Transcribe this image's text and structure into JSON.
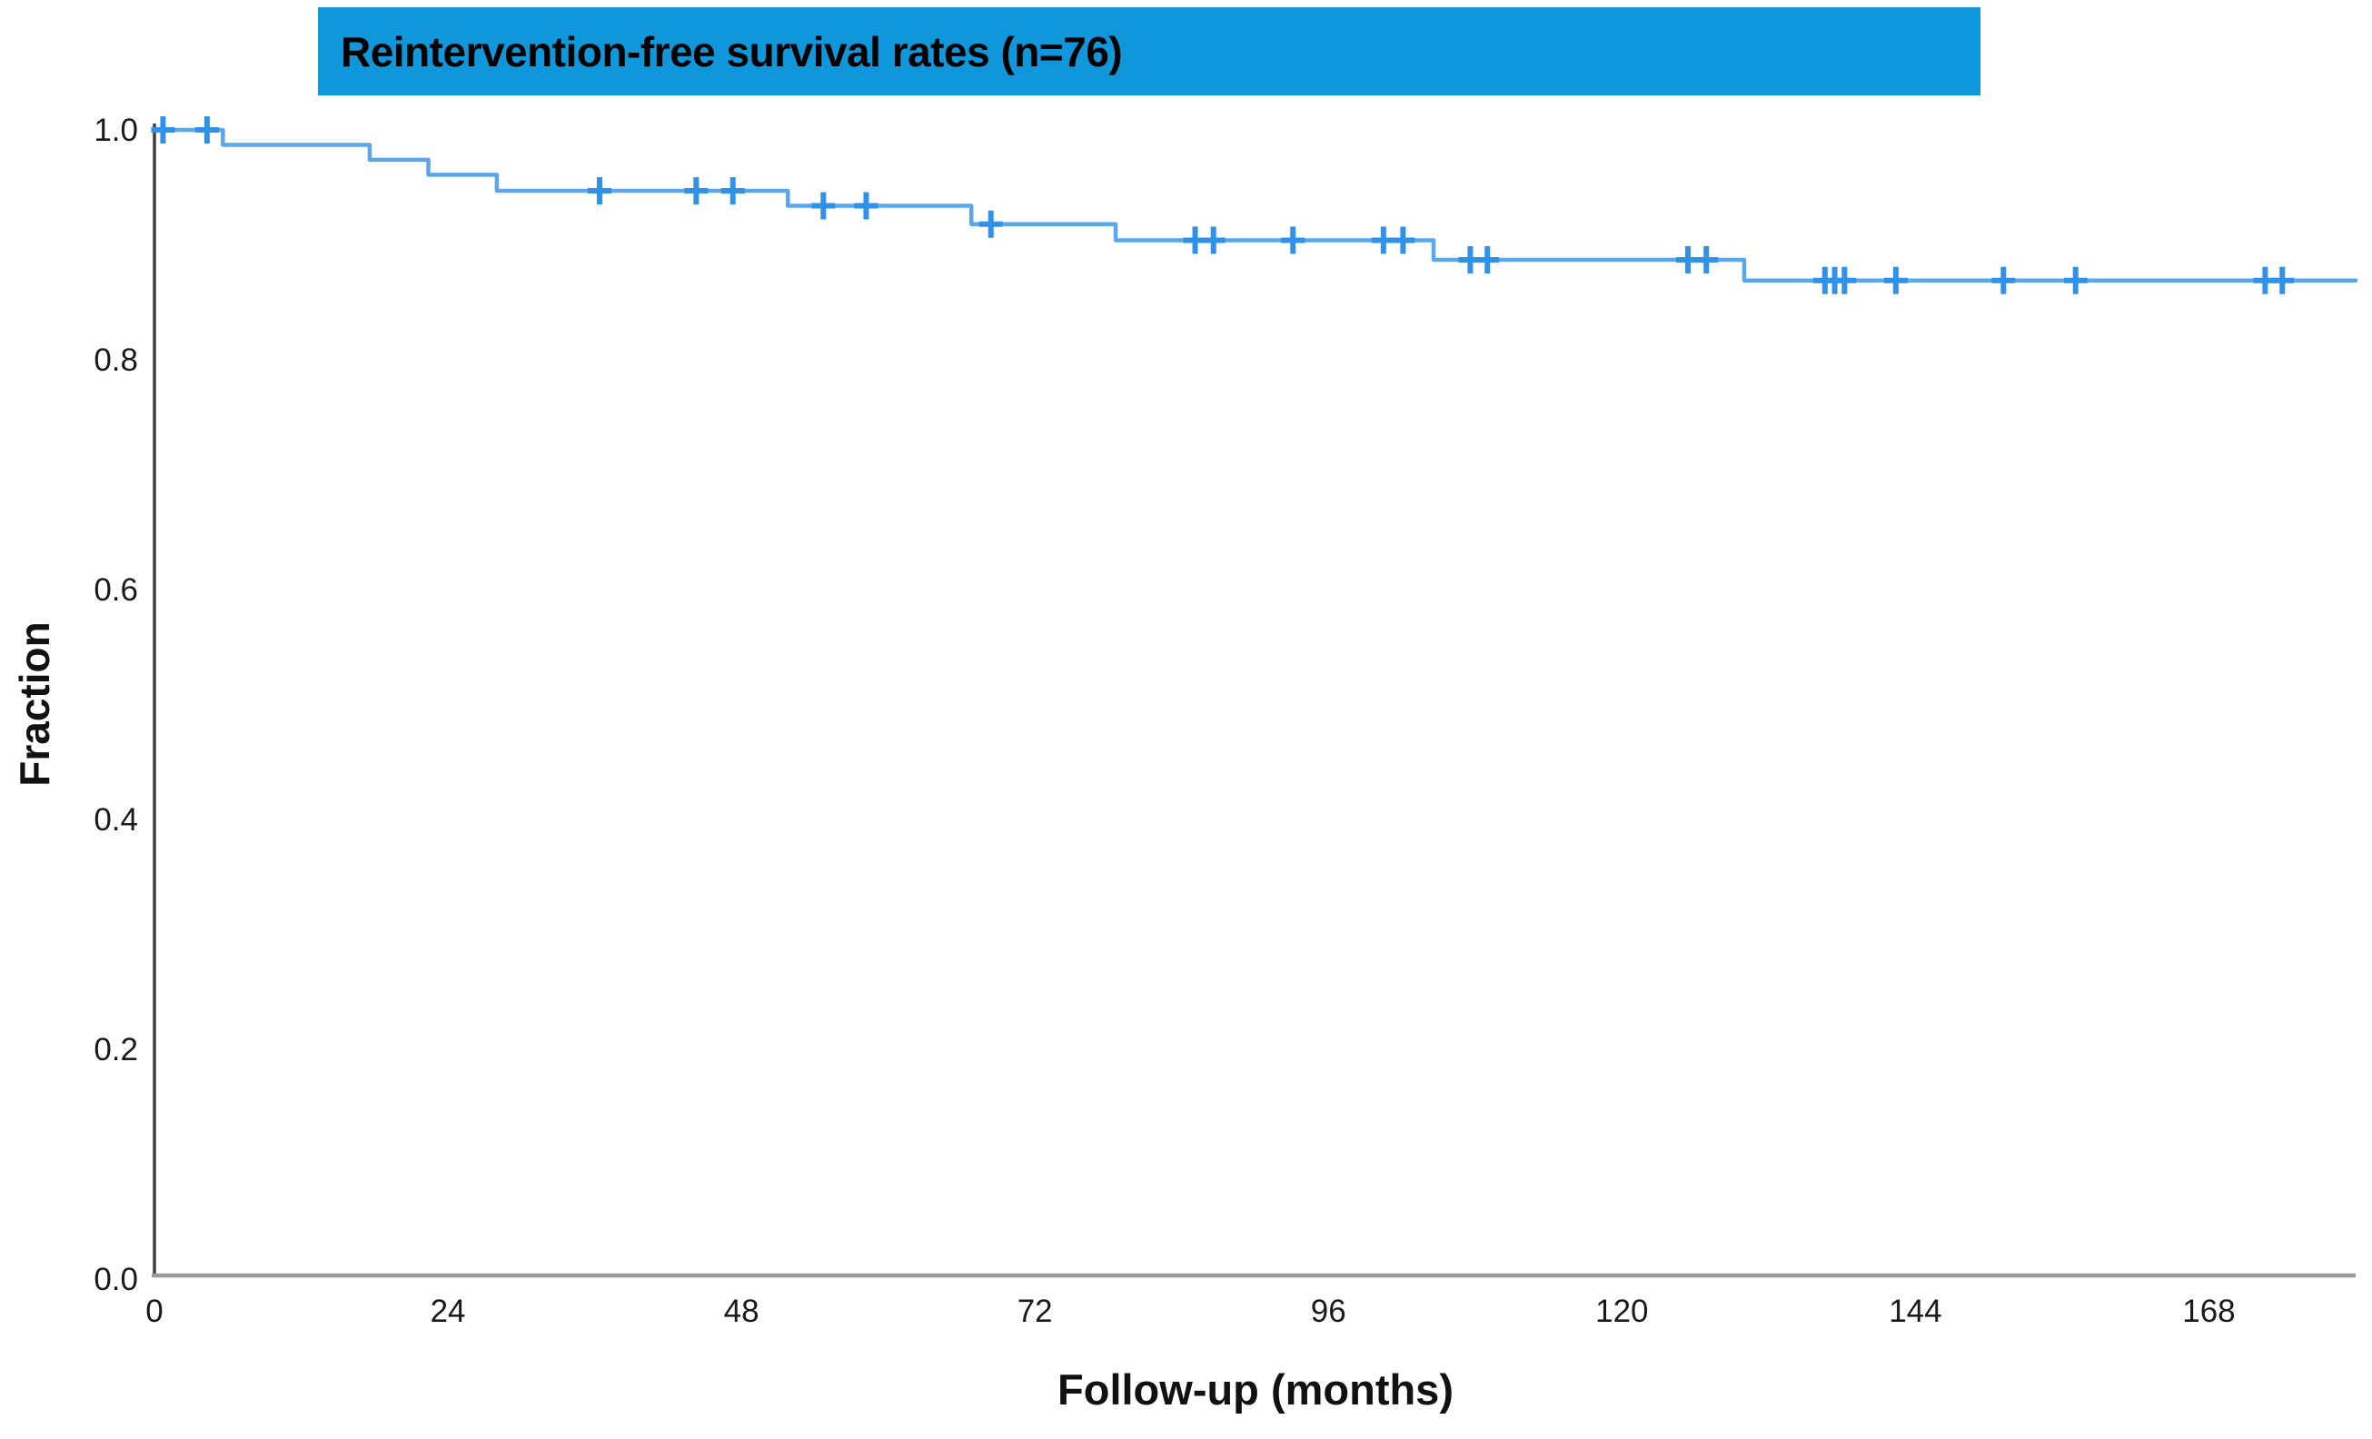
{
  "title": {
    "text": "Reintervention-free survival rates (n=76)"
  },
  "colors": {
    "banner": "#1097DB",
    "curve": "#5AA7EA",
    "censor": "#2F92E8",
    "axis_y": "#3F3F3F",
    "axis_x": "#9A9A9A",
    "tick_text": "#1A1A1A"
  },
  "chart_data": {
    "type": "line",
    "subtype": "kaplan-meier-step-function",
    "title": "Reintervention-free survival rates (n=76)",
    "sample_size": 76,
    "xlabel": "Follow-up (months)",
    "ylabel": "Fraction",
    "xlim": [
      0,
      180
    ],
    "ylim": [
      0.0,
      1.0
    ],
    "x_ticks": [
      {
        "v": 0,
        "label": "0"
      },
      {
        "v": 24,
        "label": "24"
      },
      {
        "v": 48,
        "label": "48"
      },
      {
        "v": 72,
        "label": "72"
      },
      {
        "v": 96,
        "label": "96"
      },
      {
        "v": 120,
        "label": "120"
      },
      {
        "v": 144,
        "label": "144"
      },
      {
        "v": 168,
        "label": "168"
      }
    ],
    "y_ticks": [
      {
        "v": 1.0,
        "label": "1.0"
      },
      {
        "v": 0.8,
        "label": "0.8"
      },
      {
        "v": 0.6,
        "label": "0.6"
      },
      {
        "v": 0.4,
        "label": "0.4"
      },
      {
        "v": 0.2,
        "label": "0.2"
      },
      {
        "v": 0.0,
        "label": "0.0"
      }
    ],
    "grid": false,
    "legend": false,
    "series": [
      {
        "name": "Reintervention-free survival",
        "start": [
          0,
          1.0
        ],
        "steps": [
          [
            5.6,
            0.987
          ],
          [
            17.6,
            0.974
          ],
          [
            22.4,
            0.961
          ],
          [
            28.0,
            0.947
          ],
          [
            51.8,
            0.934
          ],
          [
            66.8,
            0.918
          ],
          [
            78.6,
            0.904
          ],
          [
            104.6,
            0.887
          ],
          [
            130.0,
            0.869
          ]
        ],
        "end_x": 180,
        "censors": [
          [
            0.7,
            1.0
          ],
          [
            4.3,
            1.0
          ],
          [
            36.4,
            0.947
          ],
          [
            44.3,
            0.947
          ],
          [
            47.3,
            0.947
          ],
          [
            54.7,
            0.934
          ],
          [
            58.2,
            0.934
          ],
          [
            68.4,
            0.918
          ],
          [
            85.1,
            0.904
          ],
          [
            86.6,
            0.904
          ],
          [
            93.1,
            0.904
          ],
          [
            100.5,
            0.904
          ],
          [
            102.1,
            0.904
          ],
          [
            107.6,
            0.887
          ],
          [
            109.0,
            0.887
          ],
          [
            125.4,
            0.887
          ],
          [
            126.9,
            0.887
          ],
          [
            136.6,
            0.869
          ],
          [
            137.4,
            0.869
          ],
          [
            138.2,
            0.869
          ],
          [
            142.4,
            0.869
          ],
          [
            151.2,
            0.869
          ],
          [
            157.1,
            0.869
          ],
          [
            172.6,
            0.869
          ],
          [
            174.0,
            0.869
          ]
        ]
      }
    ]
  }
}
